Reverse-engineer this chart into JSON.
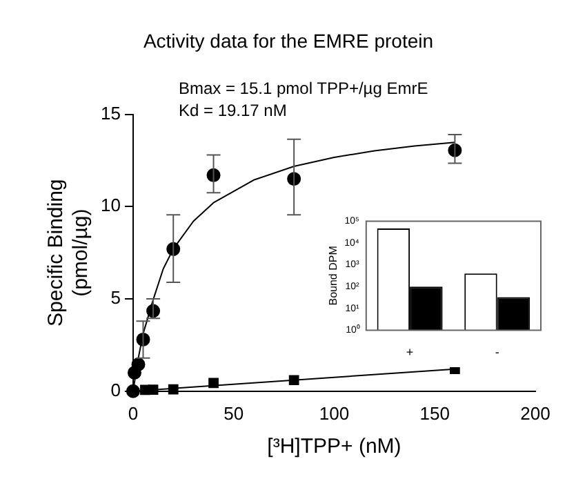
{
  "chart_data": [
    {
      "type": "scatter",
      "title": "Activity data for the EMRE protein",
      "xlabel": "[³H]TPP+ (nM)",
      "ylabel": "Specific Binding (pmol/µg)",
      "annotations": [
        "Bmax = 15.1 pmol TPP+/µg EmrE",
        "Kd = 19.17 nM"
      ],
      "xlim": [
        0,
        200
      ],
      "xticks": [
        0,
        50,
        100,
        150,
        200
      ],
      "ylim": [
        0,
        15
      ],
      "yticks": [
        0,
        5,
        10,
        15
      ],
      "grid": false,
      "legend": false,
      "series": [
        {
          "type": "scatter",
          "marker": "circle",
          "color": "#000000",
          "x": [
            0,
            0.7,
            2.6,
            5,
            10,
            20,
            40,
            80,
            160
          ],
          "values": [
            0,
            1.0,
            1.45,
            2.8,
            4.35,
            7.7,
            11.7,
            11.5,
            13.05
          ],
          "errors": [
            null,
            null,
            null,
            [
              1.8,
              3.8
            ],
            [
              3.95,
              5.0
            ],
            [
              5.9,
              9.55
            ],
            [
              10.75,
              12.8
            ],
            [
              9.55,
              13.65
            ],
            [
              12.35,
              13.9
            ]
          ]
        },
        {
          "type": "scatter",
          "marker": "square",
          "color": "#000000",
          "x": [
            6,
            10,
            20,
            40,
            80,
            160
          ],
          "values": [
            0.07,
            0.08,
            0.1,
            0.45,
            0.6,
            1.2
          ]
        },
        {
          "type": "line",
          "marker": "none",
          "color": "#000000",
          "x": [
            0,
            2.5,
            5,
            10,
            15,
            20,
            30,
            40,
            60,
            80,
            100,
            120,
            140,
            160
          ],
          "values": [
            0,
            1.74,
            3.12,
            4.96,
            6.63,
            7.71,
            9.21,
            10.21,
            11.44,
            12.18,
            12.67,
            13.02,
            13.28,
            13.48
          ]
        },
        {
          "type": "line",
          "marker": "none",
          "color": "#000000",
          "x": [
            0,
            160
          ],
          "values": [
            0,
            1.2
          ]
        }
      ]
    },
    {
      "type": "bar",
      "ylabel": "Bound DPM",
      "categories": [
        "+",
        "-"
      ],
      "log": true,
      "ylim": [
        1,
        100000
      ],
      "yticks": [
        {
          "value": 1,
          "label": "10⁰"
        },
        {
          "value": 10,
          "label": "10¹"
        },
        {
          "value": 100,
          "label": "10²"
        },
        {
          "value": 1000,
          "label": "10³"
        },
        {
          "value": 10000,
          "label": "10⁴"
        },
        {
          "value": 100000,
          "label": "10⁵"
        }
      ],
      "grid": false,
      "legend": false,
      "series": [
        {
          "color": "#ffffff",
          "values": [
            46000,
            400
          ]
        },
        {
          "color": "#000000",
          "values": [
            100,
            33
          ]
        }
      ]
    }
  ]
}
